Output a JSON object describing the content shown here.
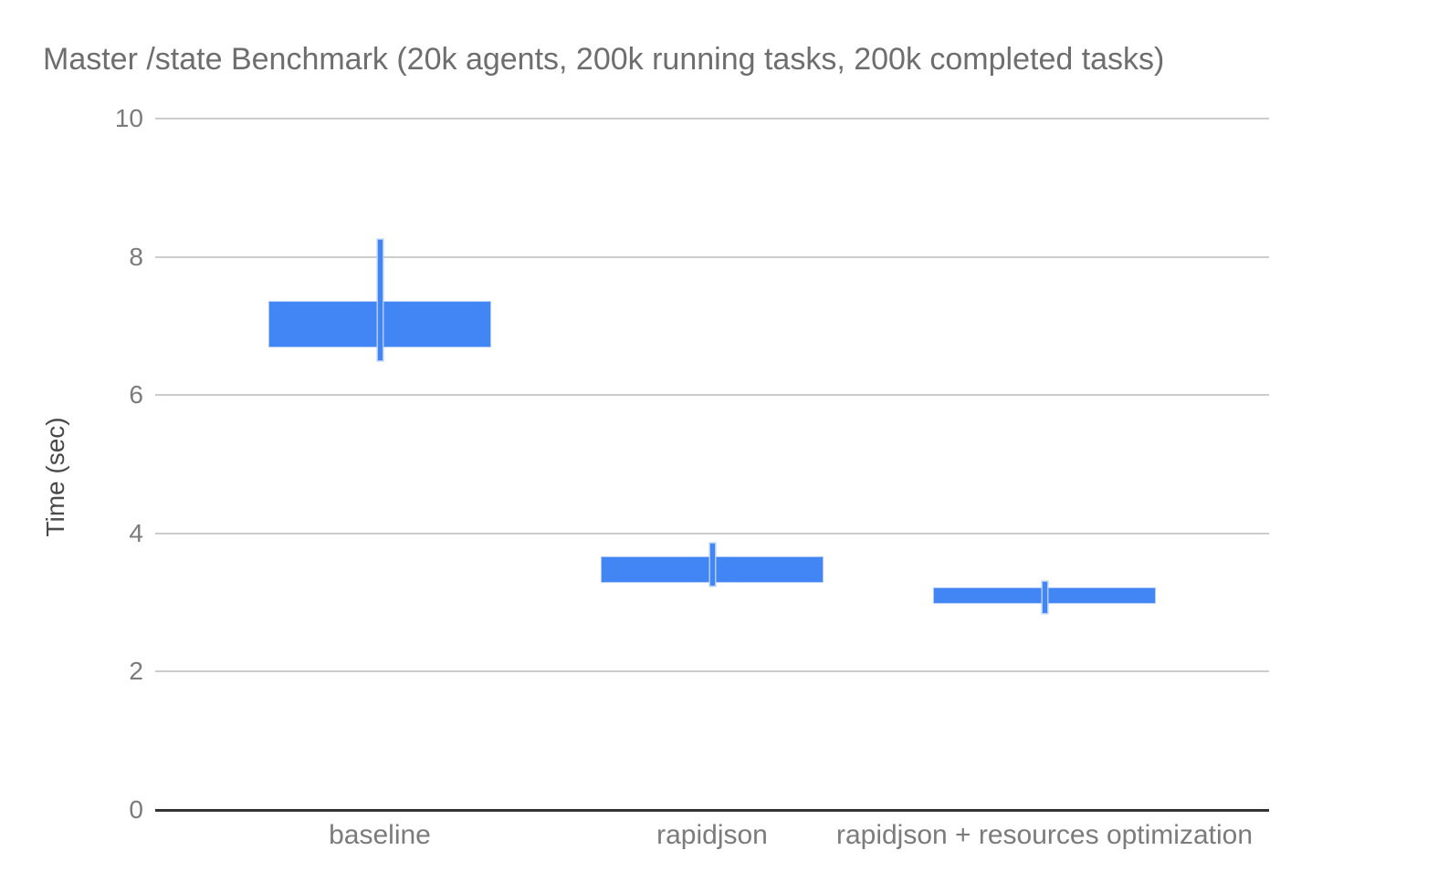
{
  "chart_data": {
    "type": "candlestick",
    "title": "Master /state Benchmark (20k agents, 200k running tasks, 200k completed tasks)",
    "xlabel": "",
    "ylabel": "Time (sec)",
    "ylim": [
      0,
      10
    ],
    "yticks": [
      0,
      2,
      4,
      6,
      8,
      10
    ],
    "grid": true,
    "legend": "none",
    "categories": [
      "baseline",
      "rapidjson",
      "rapidjson + resources optimization"
    ],
    "points": [
      {
        "category": "baseline",
        "low": 6.5,
        "box_low": 6.7,
        "box_high": 7.35,
        "high": 8.25
      },
      {
        "category": "rapidjson",
        "low": 3.25,
        "box_low": 3.3,
        "box_high": 3.65,
        "high": 3.85
      },
      {
        "category": "rapidjson + resources optimization",
        "low": 2.85,
        "box_low": 3.0,
        "box_high": 3.2,
        "high": 3.3
      }
    ],
    "colors": {
      "series": "#4285f4",
      "series_halo": "#b0cbf8",
      "gridline": "#cccccc",
      "axis_line": "#333333",
      "title_text": "#6e6e6e",
      "tick_text": "#7b7b7b",
      "axis_title_text": "#4a4a4a"
    }
  }
}
